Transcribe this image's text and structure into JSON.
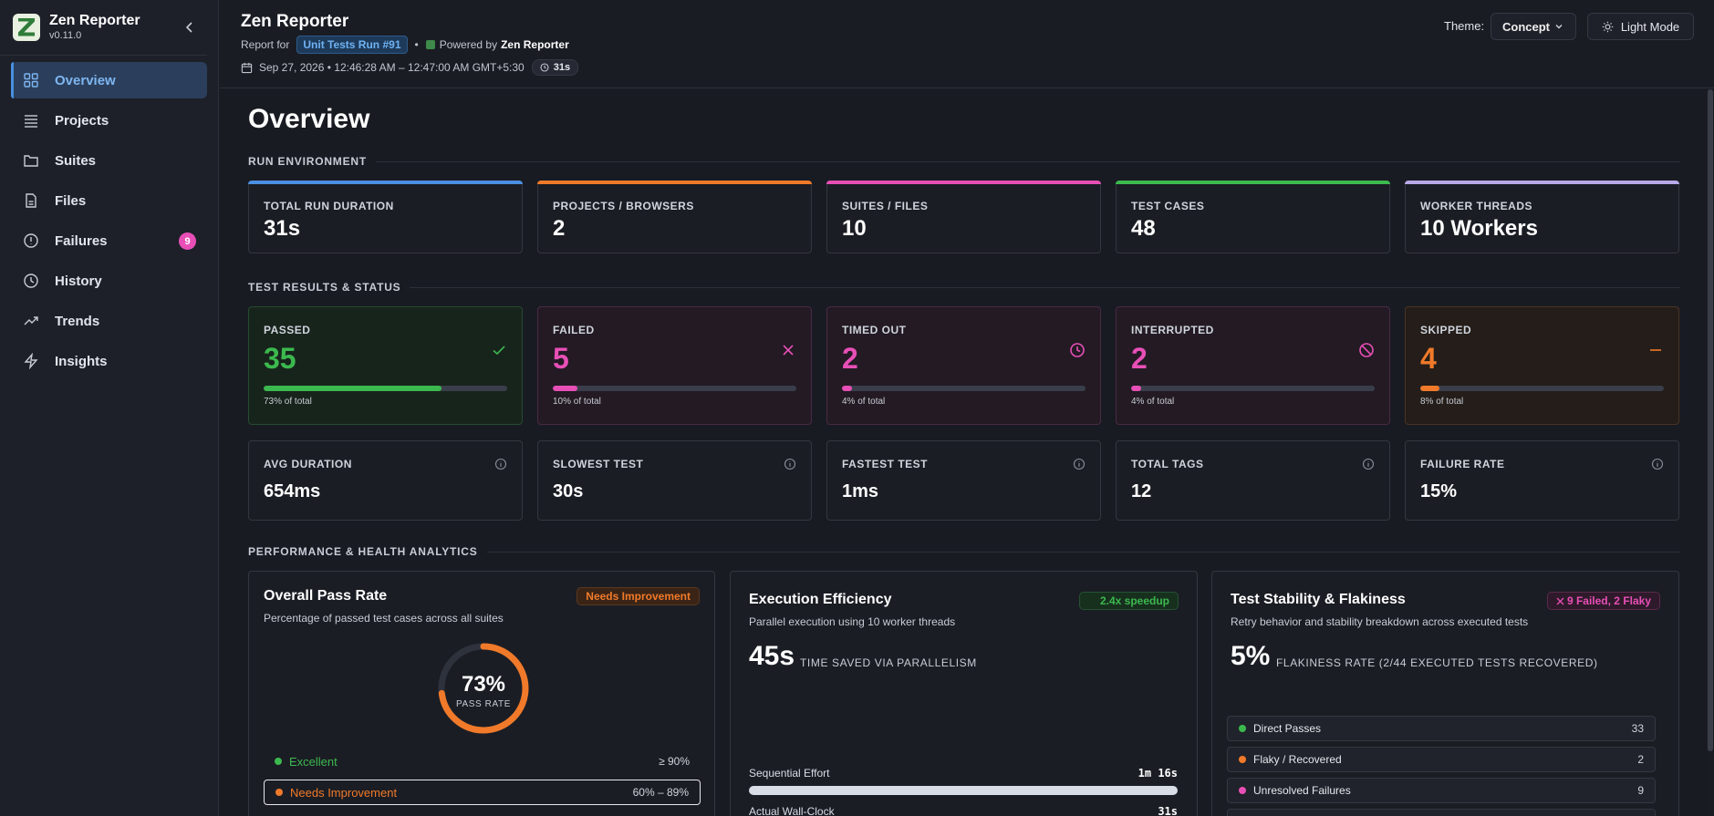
{
  "brand": {
    "title": "Zen Reporter",
    "version": "v0.11.0"
  },
  "nav": [
    {
      "label": "Overview",
      "icon": "grid-icon",
      "active": true
    },
    {
      "label": "Projects",
      "icon": "list-icon"
    },
    {
      "label": "Suites",
      "icon": "folder-icon"
    },
    {
      "label": "Files",
      "icon": "file-icon"
    },
    {
      "label": "Failures",
      "icon": "alert-circle-icon",
      "badge": "9"
    },
    {
      "label": "History",
      "icon": "clock-icon"
    },
    {
      "label": "Trends",
      "icon": "trend-icon"
    },
    {
      "label": "Insights",
      "icon": "bolt-icon"
    }
  ],
  "header": {
    "title": "Zen Reporter",
    "report_for": "Report for",
    "run_name": "Unit Tests Run #91",
    "separator": "•",
    "powered_by": "Powered by",
    "powered_name": "Zen Reporter",
    "date_range": "Sep 27, 2026 • 12:46:28 AM – 12:47:00 AM GMT+5:30",
    "duration": "31s",
    "theme_label": "Theme:",
    "theme_value": "Concept",
    "light_mode": "Light Mode"
  },
  "page_title": "Overview",
  "sections": {
    "env": "RUN ENVIRONMENT",
    "results": "TEST RESULTS & STATUS",
    "perf": "PERFORMANCE & HEALTH ANALYTICS"
  },
  "env_cards": [
    {
      "label": "TOTAL RUN DURATION",
      "value": "31s",
      "color": "#4a8fe0"
    },
    {
      "label": "PROJECTS / BROWSERS",
      "value": "2",
      "color": "#f07a2a"
    },
    {
      "label": "SUITES / FILES",
      "value": "10",
      "color": "#e84fb6"
    },
    {
      "label": "TEST CASES",
      "value": "48",
      "color": "#3cb94e"
    },
    {
      "label": "WORKER THREADS",
      "value": "10 Workers",
      "color": "#b7a8e8"
    }
  ],
  "status_cards": [
    {
      "label": "PASSED",
      "value": "35",
      "pct_text": "73% of total",
      "pct": 73,
      "color": "#3cb94e",
      "bg": "#17241c",
      "border": "#264a30",
      "icon": "check-icon"
    },
    {
      "label": "FAILED",
      "value": "5",
      "pct_text": "10% of total",
      "pct": 10,
      "color": "#e84fb6",
      "bg": "#231a24",
      "border": "#4a2a44",
      "icon": "x-icon"
    },
    {
      "label": "TIMED OUT",
      "value": "2",
      "pct_text": "4% of total",
      "pct": 4,
      "color": "#e84fb6",
      "bg": "#231a24",
      "border": "#4a2a44",
      "icon": "clock-icon"
    },
    {
      "label": "INTERRUPTED",
      "value": "2",
      "pct_text": "4% of total",
      "pct": 4,
      "color": "#e84fb6",
      "bg": "#231a24",
      "border": "#4a2a44",
      "icon": "ban-icon"
    },
    {
      "label": "SKIPPED",
      "value": "4",
      "pct_text": "8% of total",
      "pct": 8,
      "color": "#f07a2a",
      "bg": "#241d19",
      "border": "#4a3422",
      "icon": "minus-icon"
    }
  ],
  "metric_cards": [
    {
      "label": "AVG DURATION",
      "value": "654ms"
    },
    {
      "label": "SLOWEST TEST",
      "value": "30s"
    },
    {
      "label": "FASTEST TEST",
      "value": "1ms"
    },
    {
      "label": "TOTAL TAGS",
      "value": "12"
    },
    {
      "label": "FAILURE RATE",
      "value": "15%"
    }
  ],
  "pass_rate": {
    "title": "Overall Pass Rate",
    "subtitle": "Percentage of passed test cases across all suites",
    "tag": "Needs Improvement",
    "value": "73%",
    "pct": 73,
    "caption": "PASS RATE",
    "legend": [
      {
        "label": "Excellent",
        "range": "≥ 90%",
        "color": "#3cb94e"
      },
      {
        "label": "Needs Improvement",
        "range": "60% – 89%",
        "color": "#f07a2a"
      }
    ]
  },
  "efficiency": {
    "title": "Execution Efficiency",
    "subtitle": "Parallel execution using 10 worker threads",
    "tag": "2.4x speedup",
    "big": "45s",
    "note": "TIME SAVED VIA PARALLELISM",
    "sequential_label": "Sequential Effort",
    "sequential_value": "1m 16s",
    "wall_label": "Actual Wall-Clock",
    "wall_value": "31s"
  },
  "stability": {
    "title": "Test Stability & Flakiness",
    "subtitle": "Retry behavior and stability breakdown across executed tests",
    "tag": "9 Failed, 2 Flaky",
    "big": "5%",
    "note": "FLAKINESS RATE (2/44 EXECUTED TESTS RECOVERED)",
    "rows": [
      {
        "label": "Direct Passes",
        "count": "33",
        "color": "#3cb94e"
      },
      {
        "label": "Flaky / Recovered",
        "count": "2",
        "color": "#f07a2a"
      },
      {
        "label": "Unresolved Failures",
        "count": "9",
        "color": "#e84fb6"
      }
    ]
  }
}
